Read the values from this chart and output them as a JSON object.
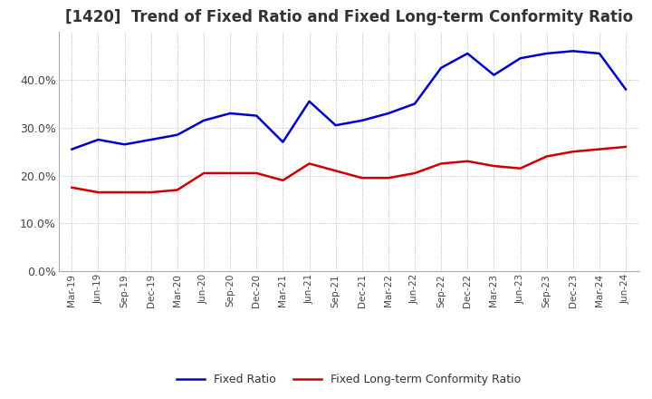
{
  "title": "[1420]  Trend of Fixed Ratio and Fixed Long-term Conformity Ratio",
  "x_labels": [
    "Mar-19",
    "Jun-19",
    "Sep-19",
    "Dec-19",
    "Mar-20",
    "Jun-20",
    "Sep-20",
    "Dec-20",
    "Mar-21",
    "Jun-21",
    "Sep-21",
    "Dec-21",
    "Mar-22",
    "Jun-22",
    "Sep-22",
    "Dec-22",
    "Mar-23",
    "Jun-23",
    "Sep-23",
    "Dec-23",
    "Mar-24",
    "Jun-24"
  ],
  "fixed_ratio": [
    25.5,
    27.5,
    26.5,
    27.5,
    28.5,
    31.5,
    33.0,
    32.5,
    27.0,
    35.5,
    30.5,
    31.5,
    33.0,
    35.0,
    42.5,
    45.5,
    41.0,
    44.5,
    45.5,
    46.0,
    45.5,
    38.0
  ],
  "fixed_lt_ratio": [
    17.5,
    16.5,
    16.5,
    16.5,
    17.0,
    20.5,
    20.5,
    20.5,
    19.0,
    22.5,
    21.0,
    19.5,
    19.5,
    20.5,
    22.5,
    23.0,
    22.0,
    21.5,
    24.0,
    25.0,
    25.5,
    26.0
  ],
  "fixed_ratio_color": "#0000cc",
  "fixed_lt_ratio_color": "#cc0000",
  "ylim": [
    0,
    50
  ],
  "yticks": [
    0.0,
    10.0,
    20.0,
    30.0,
    40.0
  ],
  "background_color": "#ffffff",
  "plot_bg_color": "#ffffff",
  "grid_color": "#aaaaaa",
  "title_fontsize": 12,
  "legend_labels": [
    "Fixed Ratio",
    "Fixed Long-term Conformity Ratio"
  ]
}
